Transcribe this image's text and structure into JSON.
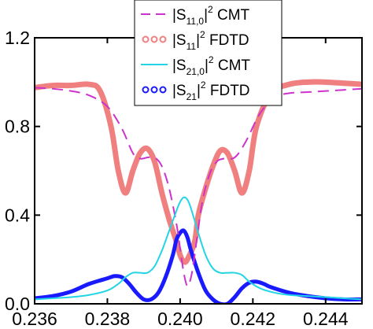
{
  "chart_data": {
    "type": "line",
    "title": "",
    "xlabel": "",
    "ylabel": "",
    "xlim": [
      0.236,
      0.245
    ],
    "ylim": [
      0.0,
      1.2
    ],
    "xticks": [
      0.236,
      0.238,
      0.24,
      0.242,
      0.244
    ],
    "xtick_labels": [
      "0.236",
      "0.238",
      "0.240",
      "0.242",
      "0.244"
    ],
    "yticks": [
      0.0,
      0.4,
      0.8,
      1.2
    ],
    "ytick_labels": [
      "0.0",
      "0.4",
      "0.8",
      "1.2"
    ],
    "grid": false,
    "legend_position": "top-center",
    "series": [
      {
        "name": "|S11,0|^2 CMT",
        "legend": {
          "base": "|S",
          "sub": "11,0",
          "mid": "|",
          "sup": "2",
          "tail": " CMT"
        },
        "style": "dashed",
        "color": "#cc33cc",
        "x": [
          0.236,
          0.2365,
          0.237,
          0.2375,
          0.238,
          0.2384,
          0.2387,
          0.2389,
          0.2391,
          0.2393,
          0.2395,
          0.2397,
          0.2399,
          0.24,
          0.2401,
          0.2402,
          0.2403,
          0.2404,
          0.2406,
          0.2408,
          0.241,
          0.2412,
          0.2415,
          0.2418,
          0.2422,
          0.2426,
          0.243,
          0.2435,
          0.244,
          0.2445,
          0.245
        ],
        "y": [
          0.975,
          0.97,
          0.96,
          0.94,
          0.89,
          0.79,
          0.68,
          0.655,
          0.66,
          0.66,
          0.62,
          0.52,
          0.36,
          0.25,
          0.14,
          0.08,
          0.12,
          0.22,
          0.45,
          0.58,
          0.64,
          0.655,
          0.66,
          0.73,
          0.86,
          0.93,
          0.95,
          0.955,
          0.96,
          0.965,
          0.97
        ]
      },
      {
        "name": "|S11|^2 FDTD",
        "legend": {
          "base": "|S",
          "sub": "11",
          "mid": "|",
          "sup": "2",
          "tail": " FDTD"
        },
        "style": "circles",
        "color": "#f08080",
        "x": [
          0.236,
          0.2365,
          0.237,
          0.2375,
          0.2378,
          0.2381,
          0.2383,
          0.2385,
          0.2387,
          0.2389,
          0.2391,
          0.2393,
          0.2395,
          0.2397,
          0.2399,
          0.24,
          0.2401,
          0.2402,
          0.2404,
          0.2405,
          0.2407,
          0.2409,
          0.2411,
          0.2413,
          0.2415,
          0.2417,
          0.2419,
          0.2421,
          0.2425,
          0.243,
          0.2435,
          0.244,
          0.245
        ],
        "y": [
          0.975,
          0.985,
          0.985,
          0.99,
          0.96,
          0.8,
          0.6,
          0.5,
          0.6,
          0.68,
          0.7,
          0.64,
          0.5,
          0.38,
          0.28,
          0.22,
          0.19,
          0.2,
          0.28,
          0.4,
          0.52,
          0.62,
          0.69,
          0.68,
          0.6,
          0.5,
          0.6,
          0.8,
          0.95,
          0.99,
          1.0,
          1.0,
          0.99
        ]
      },
      {
        "name": "|S21,0|^2 CMT",
        "legend": {
          "base": "|S",
          "sub": "21,0",
          "mid": "|",
          "sup": "2",
          "tail": " CMT"
        },
        "style": "solid",
        "color": "#22d5e6",
        "x": [
          0.236,
          0.2365,
          0.237,
          0.2375,
          0.238,
          0.2383,
          0.2385,
          0.2387,
          0.2389,
          0.2391,
          0.2393,
          0.2395,
          0.2397,
          0.2399,
          0.24,
          0.2401,
          0.2402,
          0.2403,
          0.2405,
          0.2407,
          0.2409,
          0.2411,
          0.2413,
          0.2415,
          0.2417,
          0.2419,
          0.2422,
          0.2426,
          0.243,
          0.2435,
          0.244,
          0.2445,
          0.245
        ],
        "y": [
          0.02,
          0.025,
          0.03,
          0.04,
          0.06,
          0.09,
          0.12,
          0.14,
          0.14,
          0.14,
          0.17,
          0.24,
          0.33,
          0.42,
          0.46,
          0.48,
          0.47,
          0.43,
          0.32,
          0.22,
          0.16,
          0.14,
          0.14,
          0.14,
          0.13,
          0.1,
          0.07,
          0.05,
          0.04,
          0.035,
          0.03,
          0.025,
          0.02
        ]
      },
      {
        "name": "|S21|^2 FDTD",
        "legend": {
          "base": "|S",
          "sub": "21",
          "mid": "|",
          "sup": "2",
          "tail": " FDTD"
        },
        "style": "circles",
        "color": "#1a1aff",
        "x": [
          0.236,
          0.2365,
          0.237,
          0.2375,
          0.238,
          0.2382,
          0.2384,
          0.2386,
          0.2388,
          0.239,
          0.2392,
          0.2394,
          0.2396,
          0.2398,
          0.2399,
          0.24,
          0.2401,
          0.2402,
          0.2403,
          0.2405,
          0.2407,
          0.2409,
          0.2411,
          0.2413,
          0.2415,
          0.2417,
          0.2419,
          0.2421,
          0.2423,
          0.2425,
          0.243,
          0.2435,
          0.244,
          0.2445,
          0.245
        ],
        "y": [
          0.025,
          0.035,
          0.055,
          0.09,
          0.115,
          0.125,
          0.12,
          0.09,
          0.05,
          0.02,
          0.02,
          0.05,
          0.12,
          0.22,
          0.29,
          0.32,
          0.33,
          0.3,
          0.24,
          0.14,
          0.06,
          0.02,
          0.0,
          0.0,
          0.03,
          0.07,
          0.095,
          0.1,
          0.09,
          0.075,
          0.05,
          0.035,
          0.025,
          0.02,
          0.02
        ]
      }
    ]
  }
}
